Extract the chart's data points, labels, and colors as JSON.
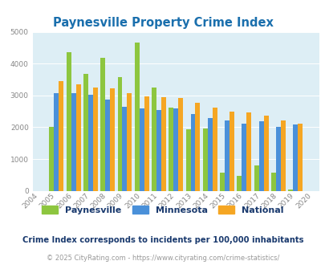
{
  "title": "Paynesville Property Crime Index",
  "years": [
    2004,
    2005,
    2006,
    2007,
    2008,
    2009,
    2010,
    2011,
    2012,
    2013,
    2014,
    2015,
    2016,
    2017,
    2018,
    2019,
    2020
  ],
  "paynesville": [
    0,
    2020,
    4350,
    3680,
    4180,
    3580,
    4650,
    3250,
    2620,
    1940,
    1950,
    570,
    460,
    800,
    560,
    50,
    0
  ],
  "minnesota": [
    0,
    3080,
    3080,
    3030,
    2870,
    2640,
    2580,
    2540,
    2580,
    2410,
    2290,
    2210,
    2120,
    2195,
    2010,
    2080,
    0
  ],
  "national": [
    0,
    3450,
    3340,
    3260,
    3220,
    3060,
    2960,
    2940,
    2920,
    2760,
    2620,
    2490,
    2470,
    2370,
    2200,
    2110,
    0
  ],
  "paynesville_color": "#8dc63f",
  "minnesota_color": "#4a90d9",
  "national_color": "#f5a623",
  "bg_color": "#ddeef5",
  "ylim": [
    0,
    5000
  ],
  "yticks": [
    0,
    1000,
    2000,
    3000,
    4000,
    5000
  ],
  "subtitle": "Crime Index corresponds to incidents per 100,000 inhabitants",
  "footer": "© 2025 CityRating.com - https://www.cityrating.com/crime-statistics/",
  "title_color": "#1a6fad",
  "subtitle_color": "#1a3a6e",
  "footer_color": "#999999",
  "bar_width": 0.28
}
